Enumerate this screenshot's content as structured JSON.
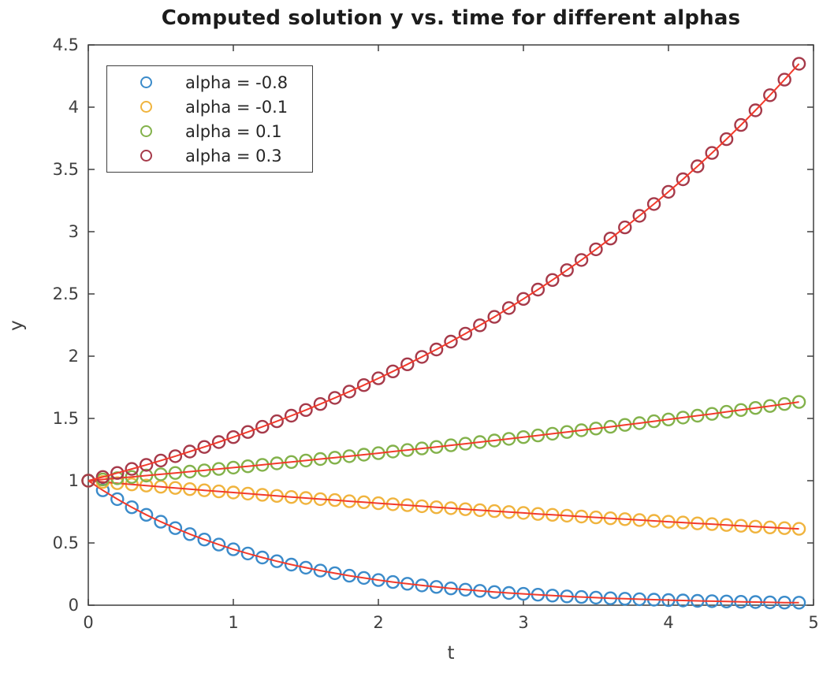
{
  "figure": {
    "background": "#ffffff",
    "axis_color": "#3f3f3f",
    "tick_label_color": "#3f3f3f",
    "title_color": "#1c1c1c"
  },
  "chart_data": {
    "type": "line",
    "title": "Computed solution y vs. time for different alphas",
    "xlabel": "t",
    "ylabel": "y",
    "xlim": [
      0,
      5
    ],
    "ylim": [
      0,
      4.5
    ],
    "xticks": [
      0,
      1,
      2,
      3,
      4,
      5
    ],
    "yticks": [
      0,
      0.5,
      1,
      1.5,
      2,
      2.5,
      3,
      3.5,
      4,
      4.5
    ],
    "grid": false,
    "legend_position": "upper-left",
    "marker": "o",
    "exact_line": {
      "color": "#f23a2b",
      "style": "solid",
      "width": 2
    },
    "x": [
      0,
      0.1,
      0.2,
      0.3,
      0.4,
      0.5,
      0.6,
      0.7,
      0.8,
      0.9,
      1,
      1.1,
      1.2,
      1.3,
      1.4,
      1.5,
      1.6,
      1.7,
      1.8,
      1.9,
      2,
      2.1,
      2.2,
      2.3,
      2.4,
      2.5,
      2.6,
      2.7,
      2.8,
      2.9,
      3,
      3.1,
      3.2,
      3.3,
      3.4,
      3.5,
      3.6,
      3.7,
      3.8,
      3.9,
      4,
      4.1,
      4.2,
      4.3,
      4.4,
      4.5,
      4.6,
      4.7,
      4.8,
      4.9
    ],
    "series": [
      {
        "name": "alpha = -0.8",
        "alpha": -0.8,
        "marker_color": "#3b8bca",
        "y": [
          1.0,
          0.923,
          0.852,
          0.787,
          0.726,
          0.67,
          0.619,
          0.571,
          0.527,
          0.487,
          0.449,
          0.415,
          0.383,
          0.353,
          0.326,
          0.301,
          0.278,
          0.257,
          0.237,
          0.219,
          0.202,
          0.186,
          0.172,
          0.159,
          0.147,
          0.135,
          0.125,
          0.115,
          0.106,
          0.098,
          0.091,
          0.084,
          0.077,
          0.071,
          0.066,
          0.061,
          0.056,
          0.052,
          0.048,
          0.044,
          0.041,
          0.038,
          0.035,
          0.032,
          0.03,
          0.027,
          0.025,
          0.023,
          0.021,
          0.02
        ]
      },
      {
        "name": "alpha = -0.1",
        "alpha": -0.1,
        "marker_color": "#f0b43e",
        "y": [
          1.0,
          0.99,
          0.98,
          0.97,
          0.961,
          0.951,
          0.942,
          0.932,
          0.923,
          0.914,
          0.905,
          0.896,
          0.887,
          0.878,
          0.869,
          0.861,
          0.852,
          0.844,
          0.835,
          0.827,
          0.819,
          0.811,
          0.803,
          0.795,
          0.787,
          0.779,
          0.771,
          0.763,
          0.756,
          0.748,
          0.741,
          0.733,
          0.726,
          0.719,
          0.712,
          0.705,
          0.698,
          0.691,
          0.684,
          0.677,
          0.67,
          0.664,
          0.657,
          0.651,
          0.644,
          0.638,
          0.631,
          0.625,
          0.619,
          0.613
        ]
      },
      {
        "name": "alpha = 0.1",
        "alpha": 0.1,
        "marker_color": "#83b24b",
        "y": [
          1.0,
          1.01,
          1.02,
          1.03,
          1.041,
          1.051,
          1.062,
          1.073,
          1.083,
          1.094,
          1.105,
          1.116,
          1.127,
          1.139,
          1.15,
          1.162,
          1.174,
          1.185,
          1.197,
          1.209,
          1.221,
          1.234,
          1.246,
          1.259,
          1.271,
          1.284,
          1.297,
          1.31,
          1.323,
          1.336,
          1.35,
          1.363,
          1.377,
          1.391,
          1.405,
          1.419,
          1.433,
          1.448,
          1.462,
          1.477,
          1.492,
          1.507,
          1.522,
          1.537,
          1.553,
          1.568,
          1.584,
          1.6,
          1.616,
          1.632
        ]
      },
      {
        "name": "alpha = 0.3",
        "alpha": 0.3,
        "marker_color": "#a63a4a",
        "y": [
          1.0,
          1.03,
          1.062,
          1.094,
          1.127,
          1.162,
          1.197,
          1.234,
          1.271,
          1.31,
          1.35,
          1.391,
          1.433,
          1.477,
          1.522,
          1.568,
          1.616,
          1.665,
          1.716,
          1.768,
          1.822,
          1.878,
          1.935,
          1.994,
          2.054,
          2.117,
          2.181,
          2.248,
          2.316,
          2.387,
          2.46,
          2.535,
          2.612,
          2.691,
          2.773,
          2.858,
          2.945,
          3.034,
          3.127,
          3.222,
          3.32,
          3.421,
          3.525,
          3.632,
          3.743,
          3.857,
          3.975,
          4.096,
          4.221,
          4.349
        ]
      }
    ]
  }
}
